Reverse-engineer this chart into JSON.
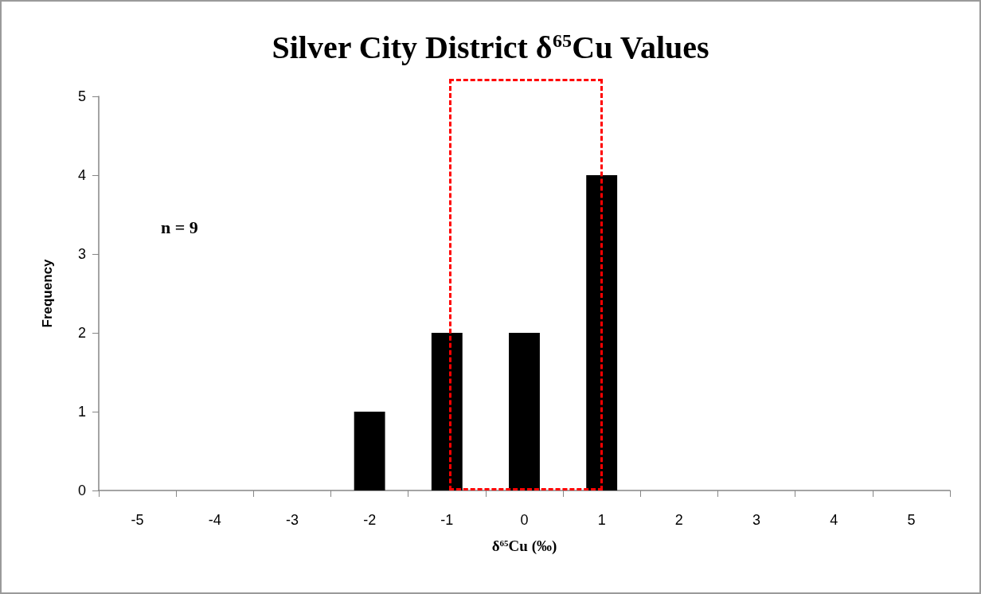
{
  "chart_data": {
    "type": "bar",
    "title": "Silver City District δ$^{65}$Cu Values",
    "xlabel": "δ$^{65}$Cu (‰)",
    "ylabel": "Frequency",
    "categories": [
      "-5",
      "-4",
      "-3",
      "-2",
      "-1",
      "0",
      "1",
      "2",
      "3",
      "4",
      "5"
    ],
    "values": [
      0,
      0,
      0,
      1,
      2,
      2,
      4,
      0,
      0,
      0,
      0
    ],
    "color": "#000000",
    "ylim": [
      0,
      5
    ],
    "yticks": [
      0,
      1,
      2,
      3,
      4,
      5
    ],
    "annotations": [
      "n = 9"
    ]
  }
}
